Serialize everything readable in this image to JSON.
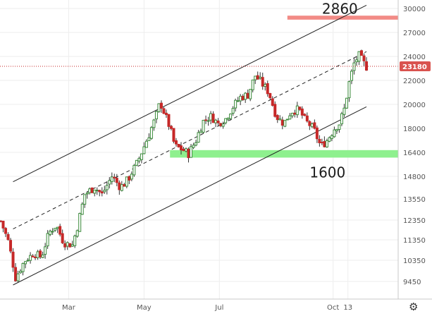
{
  "chart_data": {
    "type": "candlestick",
    "title": "",
    "xlabel": "",
    "ylabel": "",
    "ylim": [
      8900,
      30400
    ],
    "y_ticks": [
      30000,
      27000,
      24000,
      22000,
      20000,
      18000,
      16400,
      14800,
      13550,
      12350,
      11350,
      10350,
      9450
    ],
    "x_range": [
      "2020-01-06",
      "2020-10-28"
    ],
    "x_ticks": [
      {
        "label": "Mar",
        "date": "2020-03-01"
      },
      {
        "label": "May",
        "date": "2020-05-01"
      },
      {
        "label": "Jul",
        "date": "2020-07-01"
      },
      {
        "label": "Oct",
        "date": "2020-10-01"
      },
      {
        "label": "13",
        "date": "2020-10-13"
      }
    ],
    "last_price": 23180,
    "colors": {
      "up": "#3a8a3a",
      "down": "#c62828",
      "wick": "#333333",
      "price_tag": "#d9534f"
    },
    "key_points": [
      [
        "2020-01-06",
        12300
      ],
      [
        "2020-01-12",
        11300
      ],
      [
        "2020-01-18",
        9600
      ],
      [
        "2020-01-25",
        10300
      ],
      [
        "2020-02-02",
        10700
      ],
      [
        "2020-02-08",
        10500
      ],
      [
        "2020-02-14",
        11700
      ],
      [
        "2020-02-20",
        12100
      ],
      [
        "2020-02-26",
        11200
      ],
      [
        "2020-03-04",
        11100
      ],
      [
        "2020-03-08",
        12000
      ],
      [
        "2020-03-14",
        13800
      ],
      [
        "2020-03-22",
        14200
      ],
      [
        "2020-03-28",
        13800
      ],
      [
        "2020-04-05",
        14800
      ],
      [
        "2020-04-12",
        14200
      ],
      [
        "2020-04-18",
        14600
      ],
      [
        "2020-04-26",
        15800
      ],
      [
        "2020-05-01",
        16800
      ],
      [
        "2020-05-06",
        17800
      ],
      [
        "2020-05-10",
        18800
      ],
      [
        "2020-05-14",
        20200
      ],
      [
        "2020-05-20",
        18600
      ],
      [
        "2020-05-26",
        16800
      ],
      [
        "2020-06-01",
        16600
      ],
      [
        "2020-06-06",
        16300
      ],
      [
        "2020-06-12",
        17200
      ],
      [
        "2020-06-18",
        18600
      ],
      [
        "2020-06-24",
        19000
      ],
      [
        "2020-06-30",
        18400
      ],
      [
        "2020-07-06",
        18800
      ],
      [
        "2020-07-12",
        19800
      ],
      [
        "2020-07-18",
        20600
      ],
      [
        "2020-07-24",
        20800
      ],
      [
        "2020-07-30",
        22400
      ],
      [
        "2020-08-04",
        21800
      ],
      [
        "2020-08-10",
        21000
      ],
      [
        "2020-08-16",
        19000
      ],
      [
        "2020-08-22",
        18400
      ],
      [
        "2020-08-28",
        19400
      ],
      [
        "2020-09-03",
        19600
      ],
      [
        "2020-09-09",
        18600
      ],
      [
        "2020-09-15",
        18000
      ],
      [
        "2020-09-21",
        16800
      ],
      [
        "2020-09-26",
        17200
      ],
      [
        "2020-10-02",
        18000
      ],
      [
        "2020-10-06",
        18400
      ],
      [
        "2020-10-10",
        19600
      ],
      [
        "2020-10-14",
        21800
      ],
      [
        "2020-10-18",
        23400
      ],
      [
        "2020-10-22",
        24200
      ],
      [
        "2020-10-25",
        23500
      ],
      [
        "2020-10-28",
        23180
      ]
    ],
    "channel_lines": [
      {
        "name": "upper",
        "from": [
          "2020-01-16",
          14500
        ],
        "to": [
          "2020-10-28",
          30400
        ]
      },
      {
        "name": "middle",
        "from": [
          "2020-01-16",
          11900
        ],
        "to": [
          "2020-10-28",
          24600
        ]
      },
      {
        "name": "lower",
        "from": [
          "2020-01-16",
          9300
        ],
        "to": [
          "2020-10-28",
          19800
        ]
      }
    ],
    "zones": [
      {
        "name": "resistance",
        "y_range": [
          28600,
          29100
        ],
        "x_from": "2020-08-25",
        "color": "#f28b86"
      },
      {
        "name": "support",
        "y_range": [
          16050,
          16550
        ],
        "x_from": "2020-05-22",
        "color": "#8ef08e"
      }
    ],
    "annotations": [
      {
        "text": "2860",
        "x": "2020-09-22",
        "y": 30400
      },
      {
        "text": "1600",
        "x": "2020-09-12",
        "y": 15300
      }
    ],
    "gear_icon": "gear-icon"
  }
}
